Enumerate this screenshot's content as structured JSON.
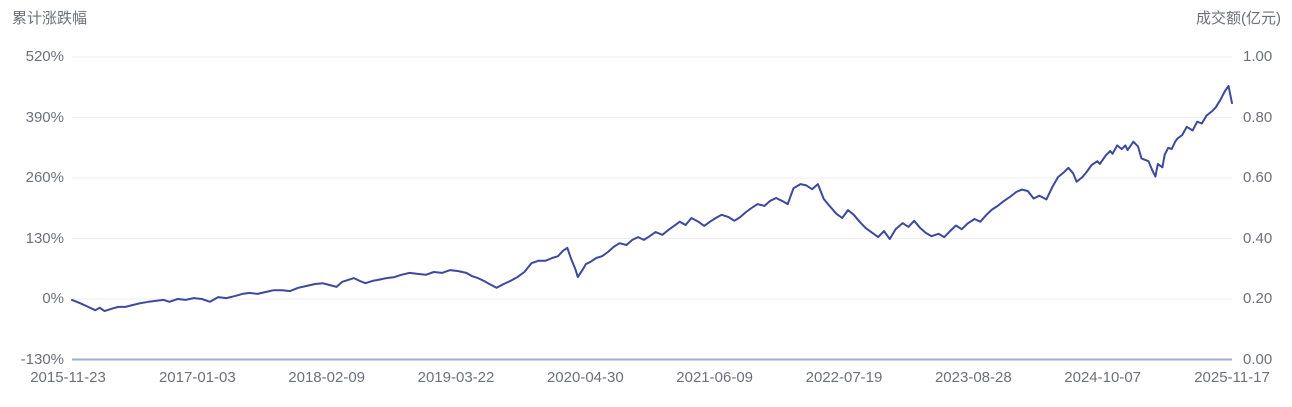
{
  "colors": {
    "line": "#3D499C",
    "grid_line": "#EDEEF6",
    "axis_line": "#A3ADCE",
    "text": "#6E7079",
    "background": "#FFFFFF"
  },
  "chart_data": {
    "type": "line",
    "title": "",
    "legend": "none",
    "grid": true,
    "left_axis": {
      "title": "累计涨跌幅",
      "ticks": [
        "520%",
        "390%",
        "260%",
        "130%",
        "0%",
        "-130%"
      ],
      "min": -130,
      "max": 520,
      "unit": "%"
    },
    "right_axis": {
      "title": "成交额(亿元)",
      "ticks": [
        "1.00",
        "0.80",
        "0.60",
        "0.40",
        "0.20",
        "0.00"
      ],
      "min": 0,
      "max": 1
    },
    "x_axis": {
      "tick_labels": [
        "2015-11-23",
        "2017-01-03",
        "2018-02-09",
        "2019-03-22",
        "2020-04-30",
        "2021-06-09",
        "2022-07-19",
        "2023-08-28",
        "2024-10-07",
        "2025-11-17"
      ]
    },
    "series": [
      {
        "name": "累计涨跌幅",
        "axis": "left",
        "color": "#3D499C",
        "point_format": "[x_fraction_of_axis, cumulative_change_percent]",
        "points": [
          [
            0.0,
            -2
          ],
          [
            0.007,
            -9
          ],
          [
            0.014,
            -17
          ],
          [
            0.02,
            -24
          ],
          [
            0.024,
            -19
          ],
          [
            0.028,
            -26
          ],
          [
            0.034,
            -21
          ],
          [
            0.04,
            -17
          ],
          [
            0.046,
            -17
          ],
          [
            0.052,
            -13
          ],
          [
            0.059,
            -9
          ],
          [
            0.066,
            -6
          ],
          [
            0.072,
            -4
          ],
          [
            0.079,
            -2
          ],
          [
            0.084,
            -6
          ],
          [
            0.091,
            0
          ],
          [
            0.098,
            -2
          ],
          [
            0.105,
            2
          ],
          [
            0.112,
            0
          ],
          [
            0.119,
            -6
          ],
          [
            0.126,
            4
          ],
          [
            0.133,
            2
          ],
          [
            0.14,
            6
          ],
          [
            0.147,
            11
          ],
          [
            0.153,
            13
          ],
          [
            0.16,
            11
          ],
          [
            0.167,
            15
          ],
          [
            0.174,
            19
          ],
          [
            0.181,
            19
          ],
          [
            0.188,
            17
          ],
          [
            0.195,
            24
          ],
          [
            0.202,
            28
          ],
          [
            0.209,
            32
          ],
          [
            0.216,
            34
          ],
          [
            0.222,
            30
          ],
          [
            0.228,
            26
          ],
          [
            0.233,
            37
          ],
          [
            0.238,
            41
          ],
          [
            0.243,
            45
          ],
          [
            0.248,
            39
          ],
          [
            0.253,
            34
          ],
          [
            0.259,
            39
          ],
          [
            0.264,
            41
          ],
          [
            0.271,
            45
          ],
          [
            0.278,
            47
          ],
          [
            0.284,
            52
          ],
          [
            0.291,
            56
          ],
          [
            0.298,
            54
          ],
          [
            0.305,
            52
          ],
          [
            0.312,
            58
          ],
          [
            0.319,
            56
          ],
          [
            0.326,
            62
          ],
          [
            0.333,
            60
          ],
          [
            0.34,
            56
          ],
          [
            0.345,
            49
          ],
          [
            0.35,
            45
          ],
          [
            0.355,
            39
          ],
          [
            0.36,
            32
          ],
          [
            0.366,
            24
          ],
          [
            0.372,
            32
          ],
          [
            0.378,
            39
          ],
          [
            0.384,
            47
          ],
          [
            0.39,
            58
          ],
          [
            0.396,
            77
          ],
          [
            0.402,
            82
          ],
          [
            0.408,
            82
          ],
          [
            0.414,
            88
          ],
          [
            0.419,
            92
          ],
          [
            0.423,
            103
          ],
          [
            0.427,
            110
          ],
          [
            0.43,
            88
          ],
          [
            0.434,
            64
          ],
          [
            0.436,
            47
          ],
          [
            0.44,
            62
          ],
          [
            0.443,
            75
          ],
          [
            0.447,
            80
          ],
          [
            0.452,
            88
          ],
          [
            0.457,
            92
          ],
          [
            0.462,
            101
          ],
          [
            0.467,
            112
          ],
          [
            0.472,
            120
          ],
          [
            0.478,
            116
          ],
          [
            0.483,
            127
          ],
          [
            0.488,
            133
          ],
          [
            0.493,
            127
          ],
          [
            0.498,
            135
          ],
          [
            0.503,
            144
          ],
          [
            0.509,
            138
          ],
          [
            0.514,
            148
          ],
          [
            0.519,
            157
          ],
          [
            0.524,
            166
          ],
          [
            0.529,
            159
          ],
          [
            0.534,
            174
          ],
          [
            0.54,
            166
          ],
          [
            0.545,
            157
          ],
          [
            0.55,
            166
          ],
          [
            0.555,
            174
          ],
          [
            0.56,
            181
          ],
          [
            0.566,
            176
          ],
          [
            0.571,
            168
          ],
          [
            0.576,
            176
          ],
          [
            0.581,
            187
          ],
          [
            0.586,
            196
          ],
          [
            0.591,
            204
          ],
          [
            0.597,
            200
          ],
          [
            0.602,
            211
          ],
          [
            0.607,
            217
          ],
          [
            0.612,
            211
          ],
          [
            0.617,
            204
          ],
          [
            0.622,
            238
          ],
          [
            0.628,
            247
          ],
          [
            0.633,
            244
          ],
          [
            0.638,
            236
          ],
          [
            0.643,
            247
          ],
          [
            0.648,
            215
          ],
          [
            0.653,
            200
          ],
          [
            0.659,
            183
          ],
          [
            0.664,
            174
          ],
          [
            0.669,
            191
          ],
          [
            0.674,
            181
          ],
          [
            0.679,
            166
          ],
          [
            0.684,
            153
          ],
          [
            0.69,
            142
          ],
          [
            0.695,
            133
          ],
          [
            0.7,
            146
          ],
          [
            0.705,
            129
          ],
          [
            0.71,
            150
          ],
          [
            0.716,
            163
          ],
          [
            0.721,
            155
          ],
          [
            0.726,
            168
          ],
          [
            0.731,
            153
          ],
          [
            0.736,
            142
          ],
          [
            0.741,
            135
          ],
          [
            0.747,
            140
          ],
          [
            0.752,
            133
          ],
          [
            0.757,
            146
          ],
          [
            0.762,
            158
          ],
          [
            0.767,
            150
          ],
          [
            0.772,
            162
          ],
          [
            0.778,
            172
          ],
          [
            0.783,
            166
          ],
          [
            0.788,
            180
          ],
          [
            0.793,
            192
          ],
          [
            0.798,
            200
          ],
          [
            0.803,
            210
          ],
          [
            0.809,
            220
          ],
          [
            0.814,
            230
          ],
          [
            0.819,
            235
          ],
          [
            0.824,
            232
          ],
          [
            0.829,
            216
          ],
          [
            0.834,
            222
          ],
          [
            0.84,
            214
          ],
          [
            0.845,
            240
          ],
          [
            0.85,
            262
          ],
          [
            0.855,
            272
          ],
          [
            0.859,
            282
          ],
          [
            0.863,
            270
          ],
          [
            0.866,
            252
          ],
          [
            0.871,
            262
          ],
          [
            0.875,
            274
          ],
          [
            0.879,
            288
          ],
          [
            0.884,
            296
          ],
          [
            0.886,
            290
          ],
          [
            0.891,
            308
          ],
          [
            0.895,
            318
          ],
          [
            0.897,
            312
          ],
          [
            0.901,
            330
          ],
          [
            0.905,
            322
          ],
          [
            0.908,
            330
          ],
          [
            0.91,
            320
          ],
          [
            0.915,
            338
          ],
          [
            0.919,
            328
          ],
          [
            0.922,
            302
          ],
          [
            0.928,
            296
          ],
          [
            0.931,
            278
          ],
          [
            0.934,
            263
          ],
          [
            0.936,
            290
          ],
          [
            0.94,
            283
          ],
          [
            0.942,
            310
          ],
          [
            0.945,
            325
          ],
          [
            0.948,
            322
          ],
          [
            0.951,
            338
          ],
          [
            0.953,
            345
          ],
          [
            0.957,
            352
          ],
          [
            0.961,
            370
          ],
          [
            0.966,
            362
          ],
          [
            0.97,
            381
          ],
          [
            0.974,
            377
          ],
          [
            0.978,
            394
          ],
          [
            0.983,
            404
          ],
          [
            0.986,
            412
          ],
          [
            0.99,
            428
          ],
          [
            0.994,
            447
          ],
          [
            0.997,
            458
          ],
          [
            1.0,
            421
          ]
        ]
      }
    ]
  }
}
